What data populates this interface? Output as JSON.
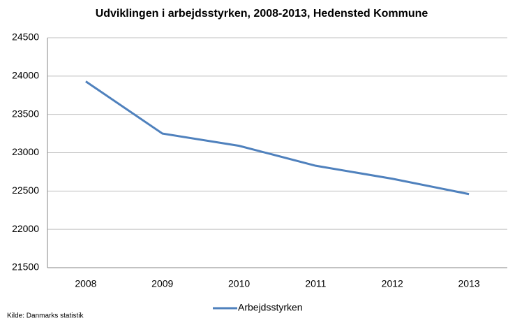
{
  "chart_data": {
    "type": "line",
    "title": "Udviklingen i arbejdsstyrken, 2008-2013, Hedensted Kommune",
    "categories": [
      "2008",
      "2009",
      "2010",
      "2011",
      "2012",
      "2013"
    ],
    "series": [
      {
        "name": "Arbejdsstyrken",
        "color": "#4f81bd",
        "values": [
          23930,
          23250,
          23090,
          22830,
          22660,
          22460
        ]
      }
    ],
    "ylim": [
      21500,
      24500
    ],
    "yticks": [
      21500,
      22000,
      22500,
      23000,
      23500,
      24000,
      24500
    ],
    "grid": true,
    "legend": "bottom",
    "source": "Kilde: Danmarks statistik"
  }
}
